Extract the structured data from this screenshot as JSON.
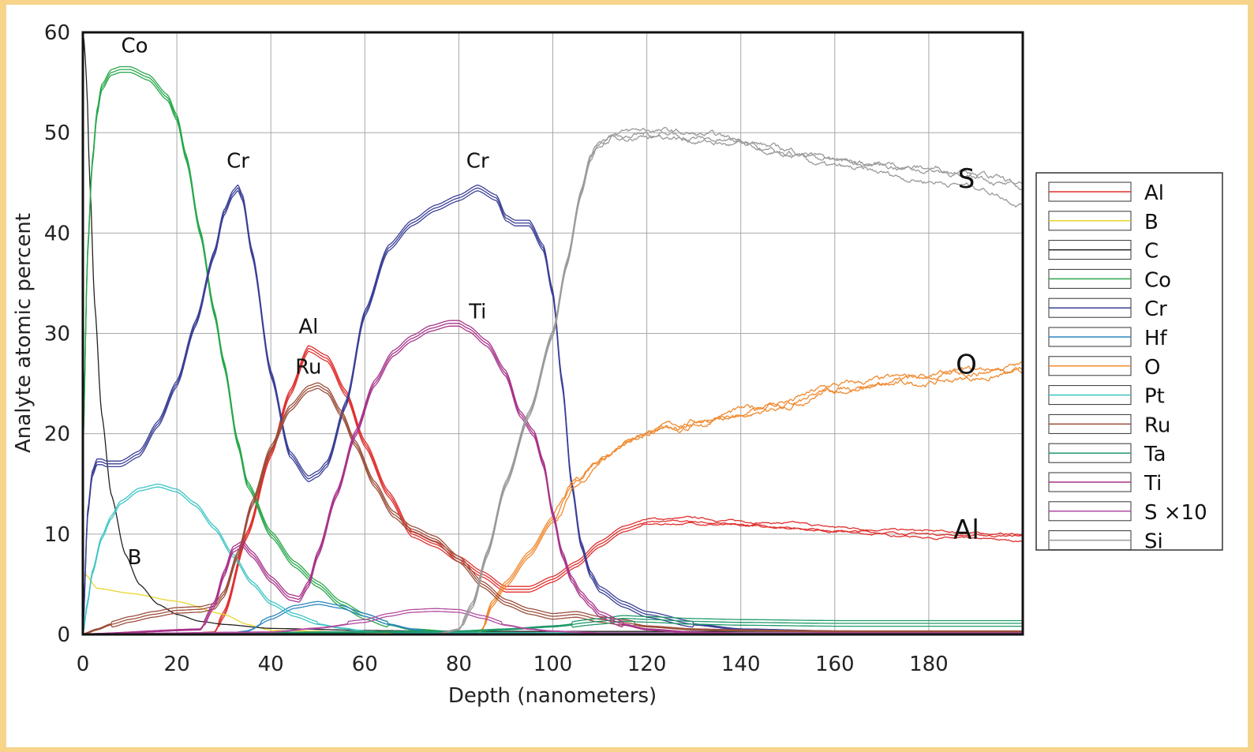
{
  "chart_data": {
    "type": "line",
    "title": "",
    "xlabel": "Depth (nanometers)",
    "ylabel": "Analyte atomic percent",
    "xlim": [
      0,
      200
    ],
    "ylim": [
      0,
      60
    ],
    "xticks": [
      "0",
      "20",
      "40",
      "60",
      "80",
      "100",
      "120",
      "140",
      "160",
      "180"
    ],
    "yticks": [
      "0",
      "10",
      "20",
      "30",
      "40",
      "50",
      "60"
    ],
    "grid": true,
    "legend_position": "right",
    "legend": [
      "Al",
      "B",
      "C",
      "Co",
      "Cr",
      "Hf",
      "O",
      "Pt",
      "Ru",
      "Ta",
      "Ti",
      "S ×10",
      "Si"
    ],
    "annotations": [
      {
        "text": "Co",
        "x": 11,
        "y": 58
      },
      {
        "text": "Cr",
        "x": 33,
        "y": 46.5
      },
      {
        "text": "Cr",
        "x": 84,
        "y": 46.5
      },
      {
        "text": "Al",
        "x": 48,
        "y": 30
      },
      {
        "text": "Ru",
        "x": 48,
        "y": 26
      },
      {
        "text": "Ti",
        "x": 84,
        "y": 31.5
      },
      {
        "text": "B",
        "x": 11,
        "y": 7
      },
      {
        "text": "S",
        "x": 188,
        "y": 44.5
      },
      {
        "text": "O",
        "x": 188,
        "y": 26
      },
      {
        "text": "Al",
        "x": 188,
        "y": 9.5
      }
    ],
    "series": [
      {
        "name": "Al",
        "color": "#e0302e",
        "replicates": 3,
        "x": [
          0,
          20,
          28,
          30,
          35,
          40,
          44,
          48,
          52,
          56,
          60,
          65,
          70,
          75,
          80,
          85,
          90,
          95,
          100,
          105,
          110,
          115,
          120,
          130,
          140,
          150,
          160,
          170,
          180,
          190,
          200
        ],
        "y": [
          0,
          0,
          0.2,
          2,
          10,
          18,
          24,
          28.5,
          27.5,
          24,
          19,
          14,
          10,
          9,
          7.5,
          6,
          4.5,
          4.5,
          5.5,
          7,
          9,
          10.5,
          11.2,
          11.3,
          11,
          10.8,
          10.4,
          10.2,
          10,
          9.8,
          9.7
        ]
      },
      {
        "name": "B",
        "color": "#e8d62a",
        "replicates": 1,
        "x": [
          0,
          0.5,
          3,
          10,
          20,
          30,
          35,
          40,
          60,
          80,
          100,
          120,
          140,
          160,
          180,
          200
        ],
        "y": [
          0,
          6,
          4.6,
          4.1,
          3.3,
          2,
          1,
          0.4,
          0.2,
          0.1,
          0.1,
          0.1,
          0.1,
          0.1,
          0.1,
          0.1
        ]
      },
      {
        "name": "C",
        "color": "#222222",
        "replicates": 1,
        "x": [
          0,
          0.3,
          0.8,
          1.5,
          2.5,
          4,
          6,
          9,
          12,
          16,
          20,
          25,
          30,
          40,
          60,
          80,
          100,
          130,
          160,
          200
        ],
        "y": [
          60,
          59,
          55,
          45,
          33,
          22,
          14,
          8,
          5,
          3,
          2,
          1.3,
          1,
          0.6,
          0.4,
          0.3,
          0.3,
          0.3,
          0.3,
          0.3
        ]
      },
      {
        "name": "Co",
        "color": "#27a84a",
        "replicates": 3,
        "x": [
          0,
          1,
          2,
          3,
          4,
          6,
          8,
          10,
          14,
          18,
          20,
          22,
          25,
          28,
          30,
          33,
          35,
          40,
          45,
          50,
          55,
          60,
          65,
          70,
          80,
          100,
          200
        ],
        "y": [
          18,
          38,
          47,
          52,
          54.5,
          56,
          56.3,
          56.3,
          55.5,
          53.5,
          51.5,
          47.5,
          40,
          32,
          27,
          19,
          15,
          10,
          7,
          5,
          3,
          1.8,
          1,
          0.5,
          0.2,
          0.1,
          0.1
        ]
      },
      {
        "name": "Cr",
        "color": "#3a3f96",
        "replicates": 3,
        "x": [
          0,
          1,
          2,
          3,
          4,
          5,
          8,
          12,
          16,
          20,
          24,
          28,
          30,
          32,
          33,
          34,
          36,
          40,
          44,
          48,
          50,
          52,
          56,
          60,
          65,
          70,
          75,
          80,
          84,
          88,
          90,
          92,
          95,
          98,
          100,
          102,
          104,
          106,
          108,
          110,
          115,
          120,
          130,
          140,
          160,
          200
        ],
        "y": [
          0,
          12,
          16,
          17.2,
          17.2,
          17,
          17,
          18,
          21,
          25,
          31,
          38,
          42,
          44,
          44.5,
          43.5,
          38,
          26,
          18,
          15.5,
          16,
          17,
          23,
          32,
          38.5,
          41,
          42.5,
          43.5,
          44.5,
          43.5,
          41.5,
          41,
          41,
          38.5,
          34,
          25,
          15,
          9,
          6,
          4.5,
          3,
          2,
          1,
          0.5,
          0.3,
          0.2
        ]
      },
      {
        "name": "Hf",
        "color": "#2a86c0",
        "replicates": 2,
        "x": [
          0,
          30,
          35,
          40,
          45,
          50,
          55,
          60,
          65,
          70,
          75,
          80,
          100,
          200
        ],
        "y": [
          0,
          0,
          0.3,
          1.5,
          2.6,
          3,
          2.6,
          1.8,
          1,
          0.5,
          0.2,
          0.1,
          0.1,
          0.1
        ]
      },
      {
        "name": "O",
        "color": "#f08a30",
        "replicates": 3,
        "x": [
          0,
          84,
          85,
          87,
          90,
          95,
          100,
          105,
          110,
          115,
          120,
          125,
          130,
          140,
          150,
          160,
          170,
          180,
          190,
          200
        ],
        "y": [
          0,
          0,
          0.5,
          3,
          5,
          8,
          11.5,
          15,
          17.5,
          19,
          20,
          20.5,
          21,
          22,
          23,
          24.5,
          25,
          25.5,
          26,
          26.5
        ]
      },
      {
        "name": "Pt",
        "color": "#3cc4c4",
        "replicates": 2,
        "x": [
          0,
          1,
          2,
          4,
          6,
          8,
          12,
          16,
          20,
          24,
          28,
          32,
          36,
          40,
          45,
          50,
          55,
          60,
          70,
          80,
          100,
          200
        ],
        "y": [
          0,
          3,
          6,
          9.5,
          11.5,
          13,
          14.3,
          14.7,
          14.2,
          12.8,
          10.5,
          7.7,
          5,
          3,
          1.8,
          1,
          0.6,
          0.3,
          0.1,
          0.1,
          0.1,
          0.1
        ]
      },
      {
        "name": "Ru",
        "color": "#9b4e3a",
        "replicates": 3,
        "x": [
          0,
          3,
          6,
          10,
          15,
          20,
          25,
          28,
          30,
          33,
          36,
          40,
          44,
          48,
          50,
          52,
          55,
          58,
          62,
          66,
          70,
          75,
          80,
          85,
          90,
          95,
          100,
          105,
          110,
          115,
          120,
          130,
          140,
          160,
          200
        ],
        "y": [
          0,
          0.5,
          1,
          1.5,
          2,
          2.4,
          2.5,
          2.8,
          4,
          8,
          13,
          18.5,
          22.5,
          24.5,
          24.8,
          24.3,
          22,
          19,
          15,
          12,
          10.5,
          9.5,
          7.5,
          5,
          3.2,
          2.3,
          1.8,
          2,
          1.5,
          1.2,
          0.8,
          0.5,
          0.4,
          0.3,
          0.3
        ]
      },
      {
        "name": "Ta",
        "color": "#1f9a6a",
        "replicates": 3,
        "x": [
          0,
          80,
          90,
          100,
          110,
          115,
          120,
          130,
          140,
          160,
          180,
          200
        ],
        "y": [
          0,
          0.3,
          0.5,
          0.8,
          1.3,
          1.6,
          1.5,
          1.3,
          1.2,
          1.1,
          1.1,
          1.1
        ]
      },
      {
        "name": "Ti",
        "color": "#a8338a",
        "replicates": 3,
        "x": [
          0,
          25,
          28,
          30,
          32,
          34,
          36,
          40,
          44,
          46,
          48,
          50,
          54,
          58,
          62,
          66,
          70,
          74,
          78,
          80,
          82,
          86,
          90,
          93,
          96,
          98,
          100,
          102,
          104,
          106,
          108,
          110,
          115,
          120,
          130,
          140,
          200
        ],
        "y": [
          0,
          0.5,
          3,
          6,
          8.5,
          9,
          8,
          5.5,
          3.7,
          3.5,
          5,
          8,
          14,
          20,
          25,
          28,
          29.5,
          30.5,
          31,
          31,
          30.5,
          29,
          26,
          22,
          20,
          17,
          12,
          8,
          5.5,
          4,
          3,
          2,
          1,
          0.5,
          0.2,
          0.1,
          0.1
        ]
      },
      {
        "name": "S ×10",
        "color": "#b24aa0",
        "replicates": 2,
        "x": [
          0,
          40,
          50,
          60,
          65,
          70,
          75,
          80,
          85,
          90,
          95,
          100,
          105,
          110,
          120,
          140,
          200
        ],
        "y": [
          0,
          0.2,
          0.6,
          1.2,
          1.8,
          2.2,
          2.3,
          2.2,
          1.6,
          0.9,
          0.5,
          0.3,
          0.2,
          0.1,
          0.1,
          0.1,
          0.1
        ]
      },
      {
        "name": "Si",
        "color": "#9a9a9a",
        "replicates": 3,
        "x": [
          0,
          75,
          80,
          83,
          86,
          90,
          95,
          100,
          103,
          106,
          108,
          110,
          113,
          116,
          120,
          125,
          130,
          140,
          150,
          160,
          170,
          180,
          190,
          200
        ],
        "y": [
          0,
          0,
          0.5,
          3,
          8,
          15,
          22,
          30,
          37,
          44,
          47.5,
          49,
          49.8,
          49.8,
          50,
          49.8,
          49.5,
          49,
          48,
          47,
          46.5,
          46,
          45.5,
          44
        ]
      }
    ]
  }
}
